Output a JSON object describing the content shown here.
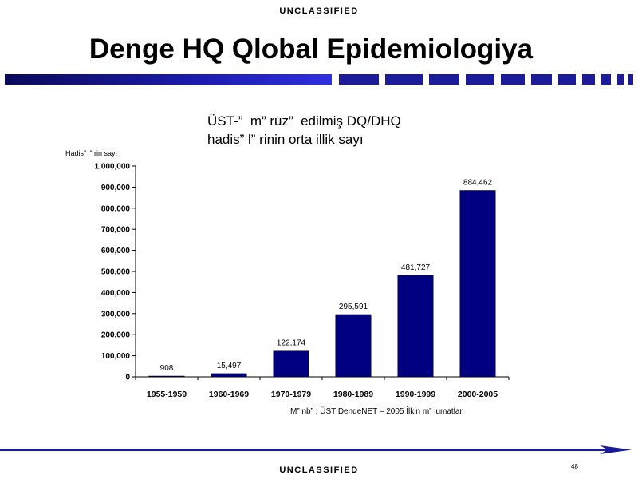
{
  "slide": {
    "classification_top": "UNCLASSIFIED",
    "classification_bottom": "UNCLASSIFIED",
    "title": "Denge HQ Qlobal Epidemiologiya",
    "page_number": "48",
    "source_note": "M” nb” : ÜST DenqeNET – 2005 İlkin m” lumatlar"
  },
  "colors": {
    "bar_fill": "#000080",
    "accent_blue": "#1a1a9c"
  },
  "chart_data": {
    "type": "bar",
    "title": "ÜST-”  m” ruz”  edilmiş DQ/DHQ\nhadis” l” rinin orta illik sayı",
    "ylabel": "Hadis” l” rin sayı",
    "xlabel": "",
    "categories": [
      "1955-1959",
      "1960-1969",
      "1970-1979",
      "1980-1989",
      "1990-1999",
      "2000-2005"
    ],
    "values": [
      908,
      15497,
      122174,
      295591,
      481727,
      884462
    ],
    "data_labels": [
      "908",
      "15,497",
      "122,174",
      "295,591",
      "481,727",
      "884,462"
    ],
    "ylim": [
      0,
      1000000
    ],
    "y_ticks": [
      0,
      100000,
      200000,
      300000,
      400000,
      500000,
      600000,
      700000,
      800000,
      900000,
      1000000
    ],
    "y_tick_labels": [
      "0",
      "100,000",
      "200,000",
      "300,000",
      "400,000",
      "500,000",
      "600,000",
      "700,000",
      "800,000",
      "900,000",
      "1,000,000"
    ],
    "grid": false,
    "legend": "none"
  }
}
